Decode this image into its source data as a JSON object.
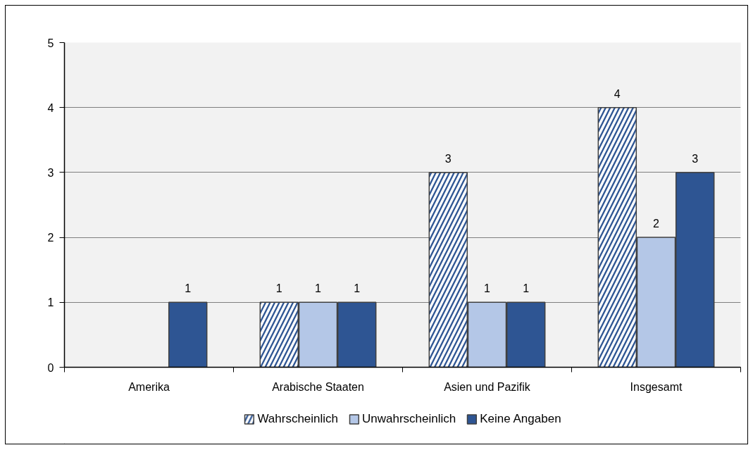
{
  "chart_data": {
    "type": "bar",
    "categories": [
      "Amerika",
      "Arabische Staaten",
      "Asien und Pazifik",
      "Insgesamt"
    ],
    "series": [
      {
        "name": "Wahrscheinlich",
        "color": "#2e5593",
        "values": [
          null,
          1,
          3,
          4
        ]
      },
      {
        "name": "Unwahrscheinlich",
        "color": "#b4c7e7",
        "values": [
          null,
          1,
          1,
          2
        ]
      },
      {
        "name": "Keine Angaben",
        "color": "#2e5593",
        "values": [
          1,
          1,
          1,
          3
        ]
      }
    ],
    "ylim": [
      0,
      5
    ],
    "yticks": [
      0,
      1,
      2,
      3,
      4,
      5
    ],
    "grid": "y",
    "legend": "bottom",
    "data_labels": true
  }
}
